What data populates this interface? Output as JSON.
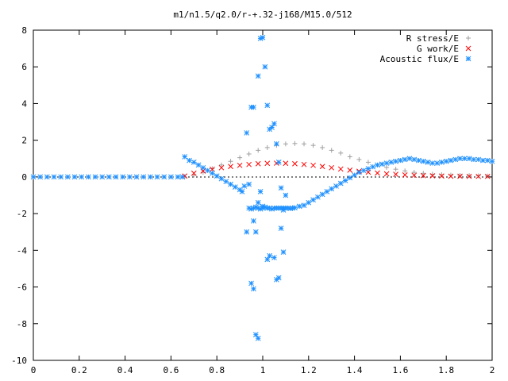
{
  "chart_data": {
    "type": "scatter",
    "title": "m1/n1.5/q2.0/r-+.32-j168/M15.0/512",
    "xlabel": "",
    "ylabel": "",
    "xlim": [
      0,
      2
    ],
    "ylim": [
      -10,
      8
    ],
    "x_ticks": [
      0,
      0.2,
      0.4,
      0.6,
      0.8,
      1,
      1.2,
      1.4,
      1.6,
      1.8,
      2
    ],
    "x_tick_labels": [
      "0",
      "0.2",
      "0.4",
      "0.6",
      "0.8",
      "1",
      "1.2",
      "1.4",
      "1.6",
      "1.8",
      "2"
    ],
    "y_ticks": [
      -10,
      -8,
      -6,
      -4,
      -2,
      0,
      2,
      4,
      6,
      8
    ],
    "y_tick_labels": [
      "-10",
      "-8",
      "-6",
      "-4",
      "-2",
      "0",
      "2",
      "4",
      "6",
      "8"
    ],
    "grid": false,
    "legend_position": "top-right",
    "series": [
      {
        "name": "R stress/E",
        "marker": "plus",
        "color": "#a0a0a0",
        "x": [
          0.66,
          0.7,
          0.74,
          0.78,
          0.82,
          0.86,
          0.9,
          0.94,
          0.98,
          1.02,
          1.06,
          1.1,
          1.14,
          1.18,
          1.22,
          1.26,
          1.3,
          1.34,
          1.38,
          1.42,
          1.46,
          1.5,
          1.54,
          1.58,
          1.62,
          1.66,
          1.7,
          1.74,
          1.78,
          1.82,
          1.86,
          1.9,
          1.94,
          1.98
        ],
        "y": [
          0.0,
          0.1,
          0.25,
          0.45,
          0.65,
          0.85,
          1.05,
          1.25,
          1.45,
          1.6,
          1.72,
          1.8,
          1.82,
          1.8,
          1.72,
          1.6,
          1.45,
          1.3,
          1.1,
          0.95,
          0.8,
          0.65,
          0.52,
          0.42,
          0.33,
          0.25,
          0.2,
          0.15,
          0.12,
          0.1,
          0.08,
          0.07,
          0.06,
          0.05
        ]
      },
      {
        "name": "G work/E",
        "marker": "cross",
        "color": "#ff0000",
        "x": [
          0.66,
          0.7,
          0.74,
          0.78,
          0.82,
          0.86,
          0.9,
          0.94,
          0.98,
          1.02,
          1.06,
          1.1,
          1.14,
          1.18,
          1.22,
          1.26,
          1.3,
          1.34,
          1.38,
          1.42,
          1.46,
          1.5,
          1.54,
          1.58,
          1.62,
          1.66,
          1.7,
          1.74,
          1.78,
          1.82,
          1.86,
          1.9,
          1.94,
          1.98
        ],
        "y": [
          0.05,
          0.2,
          0.32,
          0.42,
          0.5,
          0.57,
          0.63,
          0.68,
          0.72,
          0.74,
          0.75,
          0.74,
          0.72,
          0.68,
          0.63,
          0.57,
          0.5,
          0.43,
          0.37,
          0.31,
          0.26,
          0.21,
          0.17,
          0.14,
          0.11,
          0.09,
          0.07,
          0.06,
          0.05,
          0.04,
          0.04,
          0.03,
          0.03,
          0.03
        ]
      },
      {
        "name": "Acoustic flux/E",
        "marker": "star",
        "color": "#1e90ff",
        "x": [
          0.0,
          0.03,
          0.06,
          0.09,
          0.12,
          0.15,
          0.18,
          0.21,
          0.24,
          0.27,
          0.3,
          0.33,
          0.36,
          0.39,
          0.42,
          0.45,
          0.48,
          0.51,
          0.54,
          0.57,
          0.6,
          0.63,
          0.65,
          0.66,
          0.68,
          0.7,
          0.72,
          0.74,
          0.76,
          0.78,
          0.8,
          0.82,
          0.84,
          0.86,
          0.88,
          0.9,
          0.91,
          0.92,
          0.94,
          0.95,
          0.96,
          0.97,
          0.98,
          0.99,
          1.0,
          1.01,
          1.02,
          1.03,
          1.04,
          1.05,
          1.06,
          1.07,
          1.08,
          1.09,
          1.1,
          1.11,
          1.12,
          1.13,
          1.14,
          1.16,
          1.18,
          1.2,
          1.22,
          1.24,
          1.26,
          1.28,
          1.3,
          1.32,
          1.34,
          1.36,
          1.38,
          1.4,
          1.42,
          1.44,
          1.46,
          1.48,
          1.5,
          1.52,
          1.54,
          1.56,
          1.58,
          1.6,
          1.62,
          1.64,
          1.66,
          1.68,
          1.7,
          1.72,
          1.74,
          1.76,
          1.78,
          1.8,
          1.82,
          1.84,
          1.86,
          1.88,
          1.9,
          1.92,
          1.94,
          1.96,
          1.98,
          2.0,
          0.93,
          0.95,
          0.96,
          0.98,
          0.99,
          1.0,
          1.01,
          1.02,
          1.03,
          1.04,
          1.05,
          1.06,
          1.07,
          1.08,
          1.09,
          1.1,
          0.94,
          0.96,
          0.97,
          0.98,
          0.99,
          1.0,
          1.02,
          1.03,
          1.05,
          1.06,
          1.07,
          1.08,
          1.09,
          0.93,
          0.95,
          0.96,
          0.97,
          0.98
        ],
        "y": [
          0.0,
          0.0,
          0.0,
          0.0,
          0.0,
          0.0,
          0.0,
          0.0,
          0.0,
          0.0,
          0.0,
          0.0,
          0.0,
          0.0,
          0.0,
          0.0,
          0.0,
          0.0,
          0.0,
          0.0,
          0.0,
          0.0,
          0.0,
          1.1,
          0.9,
          0.8,
          0.65,
          0.5,
          0.35,
          0.2,
          0.05,
          -0.1,
          -0.25,
          -0.4,
          -0.55,
          -0.7,
          -0.8,
          -0.5,
          -1.7,
          -1.75,
          -1.7,
          -1.65,
          -1.7,
          -1.75,
          -1.7,
          -1.65,
          -1.7,
          -1.7,
          -1.75,
          -1.7,
          -1.7,
          -1.7,
          -1.7,
          -1.7,
          -1.7,
          -1.7,
          -1.72,
          -1.7,
          -1.68,
          -1.6,
          -1.55,
          -1.4,
          -1.25,
          -1.1,
          -0.95,
          -0.8,
          -0.65,
          -0.5,
          -0.35,
          -0.2,
          -0.05,
          0.1,
          0.25,
          0.35,
          0.45,
          0.55,
          0.65,
          0.7,
          0.75,
          0.8,
          0.85,
          0.9,
          0.95,
          1.0,
          0.95,
          0.9,
          0.85,
          0.8,
          0.75,
          0.75,
          0.8,
          0.85,
          0.9,
          0.95,
          1.0,
          1.0,
          1.0,
          0.95,
          0.95,
          0.9,
          0.9,
          0.85,
          2.4,
          3.8,
          3.8,
          5.5,
          7.55,
          7.6,
          6.0,
          3.9,
          2.6,
          2.7,
          2.9,
          1.8,
          0.8,
          -0.6,
          -1.8,
          -1.0,
          -0.4,
          -2.4,
          -3.0,
          -1.4,
          -0.8,
          -1.6,
          -4.5,
          -4.3,
          -4.4,
          -5.6,
          -5.5,
          -2.8,
          -4.1,
          -3.0,
          -5.8,
          -6.1,
          -8.6,
          -8.8
        ],
        "points_note": ""
      }
    ]
  }
}
